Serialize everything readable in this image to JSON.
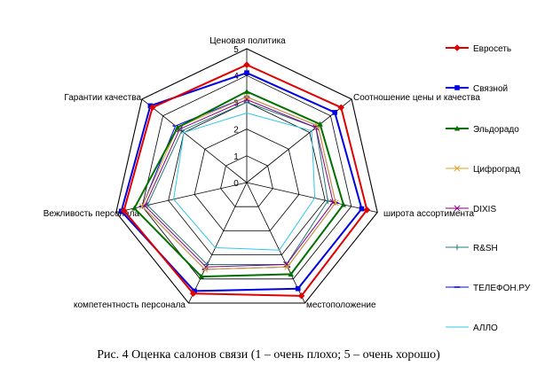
{
  "caption": "Рис. 4 Оценка салонов связи (1 – очень плохо; 5 – очень хорошо)",
  "chart_data": {
    "type": "radar",
    "axes": [
      "Ценовая политика",
      "Соотношение цены и качества",
      "широта ассортимента",
      "местоположение",
      "компетентность персонала",
      "Вежливость персонала",
      "Гарантии качества"
    ],
    "rlim": [
      0,
      5
    ],
    "ticks": [
      0,
      1,
      2,
      3,
      4,
      5
    ],
    "grid": true,
    "legend_position": "right",
    "series": [
      {
        "name": "Евросеть",
        "color": "#e00000",
        "marker": "diamond",
        "values": [
          4.4,
          4.5,
          4.6,
          4.7,
          4.6,
          4.7,
          4.5
        ]
      },
      {
        "name": "Связной",
        "color": "#0000e0",
        "marker": "square",
        "values": [
          4.1,
          4.2,
          4.4,
          4.4,
          4.5,
          4.8,
          4.6
        ]
      },
      {
        "name": "Эльдорадо",
        "color": "#007000",
        "marker": "triangle",
        "values": [
          3.4,
          3.5,
          3.7,
          3.8,
          3.9,
          4.3,
          3.3
        ]
      },
      {
        "name": "Цифроград",
        "color": "#e0a020",
        "marker": "x",
        "values": [
          3.2,
          3.4,
          3.4,
          3.5,
          3.6,
          4.0,
          3.3
        ]
      },
      {
        "name": "DIXIS",
        "color": "#800080",
        "marker": "x",
        "values": [
          3.1,
          3.3,
          3.3,
          3.4,
          3.5,
          3.9,
          3.2
        ]
      },
      {
        "name": "R&SH",
        "color": "#207878",
        "marker": "plus",
        "values": [
          3.0,
          3.3,
          3.1,
          3.4,
          3.4,
          3.8,
          3.1
        ]
      },
      {
        "name": "ТЕЛЕФОН.РУ",
        "color": "#0000ff",
        "marker": "dash",
        "values": [
          3.2,
          3.4,
          3.4,
          3.5,
          3.6,
          4.0,
          3.4
        ]
      },
      {
        "name": "АЛЛО",
        "color": "#30c8e8",
        "marker": "none",
        "values": [
          2.6,
          3.1,
          2.6,
          2.8,
          2.7,
          2.8,
          3.0
        ]
      }
    ]
  }
}
